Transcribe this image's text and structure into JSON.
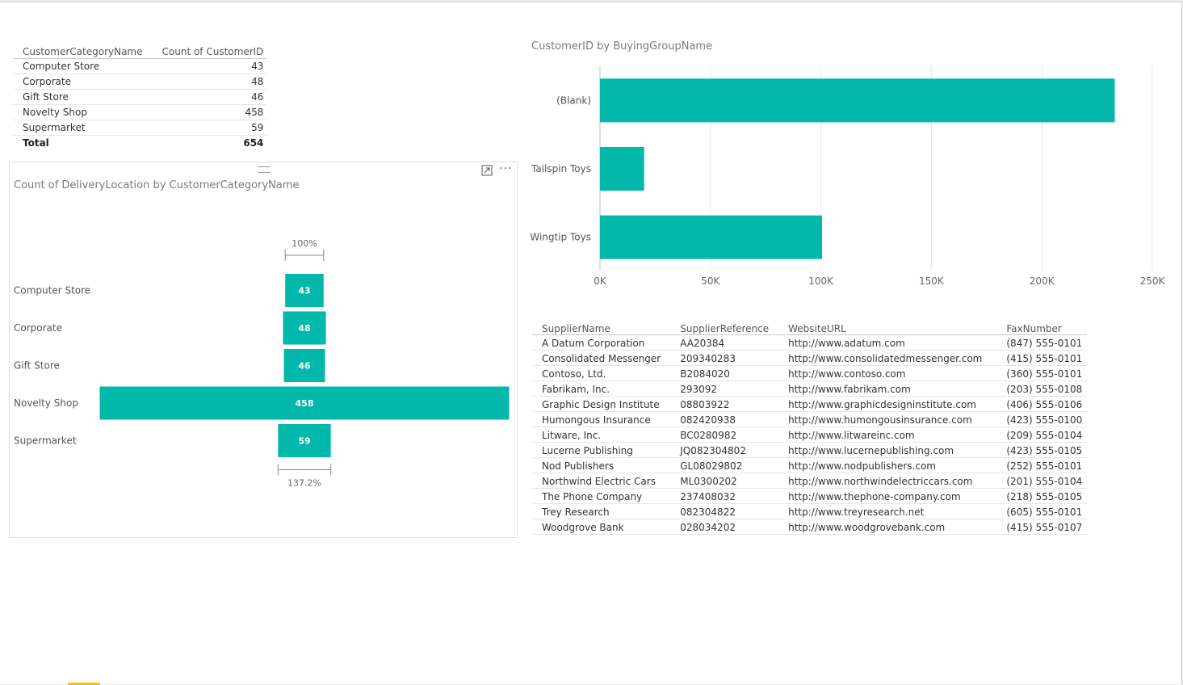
{
  "category_table": {
    "headers": [
      "CustomerCategoryName",
      "Count of CustomerID"
    ],
    "rows": [
      [
        "Computer Store",
        "43"
      ],
      [
        "Corporate",
        "48"
      ],
      [
        "Gift Store",
        "46"
      ],
      [
        "Novelty Shop",
        "458"
      ],
      [
        "Supermarket",
        "59"
      ]
    ],
    "total_label": "Total",
    "total_value": "654"
  },
  "funnel": {
    "title": "Count of DeliveryLocation by CustomerCategoryName",
    "top_percent": "100%",
    "bottom_percent": "137.2%",
    "more_glyph": "···"
  },
  "bar_chart": {
    "title": "CustomerID by BuyingGroupName"
  },
  "supplier_table": {
    "headers": [
      "SupplierName",
      "SupplierReference",
      "WebsiteURL",
      "FaxNumber"
    ],
    "rows": [
      [
        "A Datum Corporation",
        "AA20384",
        "http://www.adatum.com",
        "(847) 555-0101"
      ],
      [
        "Consolidated Messenger",
        "209340283",
        "http://www.consolidatedmessenger.com",
        "(415) 555-0101"
      ],
      [
        "Contoso, Ltd.",
        "B2084020",
        "http://www.contoso.com",
        "(360) 555-0101"
      ],
      [
        "Fabrikam, Inc.",
        "293092",
        "http://www.fabrikam.com",
        "(203) 555-0108"
      ],
      [
        "Graphic Design Institute",
        "08803922",
        "http://www.graphicdesigninstitute.com",
        "(406) 555-0106"
      ],
      [
        "Humongous Insurance",
        "082420938",
        "http://www.humongousinsurance.com",
        "(423) 555-0100"
      ],
      [
        "Litware, Inc.",
        "BC0280982",
        "http://www.litwareinc.com",
        "(209) 555-0104"
      ],
      [
        "Lucerne Publishing",
        "JQ082304802",
        "http://www.lucernepublishing.com",
        "(423) 555-0105"
      ],
      [
        "Nod Publishers",
        "GL08029802",
        "http://www.nodpublishers.com",
        "(252) 555-0101"
      ],
      [
        "Northwind Electric Cars",
        "ML0300202",
        "http://www.northwindelectriccars.com",
        "(201) 555-0104"
      ],
      [
        "The Phone Company",
        "237408032",
        "http://www.thephone-company.com",
        "(218) 555-0105"
      ],
      [
        "Trey Research",
        "082304822",
        "http://www.treyresearch.net",
        "(605) 555-0101"
      ],
      [
        "Woodgrove Bank",
        "028034202",
        "http://www.woodgrovebank.com",
        "(415) 555-0107"
      ]
    ]
  },
  "colors": {
    "bar": "#01b8aa",
    "grid": "#e8e8e8",
    "axis_text": "#666666",
    "title_text": "#7a7a7a"
  },
  "chart_data": [
    {
      "type": "bar",
      "orientation": "horizontal",
      "variant": "funnel",
      "title": "Count of DeliveryLocation by CustomerCategoryName",
      "categories": [
        "Computer Store",
        "Corporate",
        "Gift Store",
        "Novelty Shop",
        "Supermarket"
      ],
      "values": [
        43,
        48,
        46,
        458,
        59
      ],
      "value_labels": [
        "43",
        "48",
        "46",
        "458",
        "59"
      ],
      "annotations": [
        "100%",
        "137.2%"
      ]
    },
    {
      "type": "bar",
      "orientation": "horizontal",
      "title": "CustomerID by BuyingGroupName",
      "categories": [
        "(Blank)",
        "Tailspin Toys",
        "Wingtip Toys"
      ],
      "values": [
        233000,
        20000,
        100500
      ],
      "xlim": [
        0,
        250000
      ],
      "xticks": [
        "0K",
        "50K",
        "100K",
        "150K",
        "200K",
        "250K"
      ],
      "grid": true
    }
  ]
}
